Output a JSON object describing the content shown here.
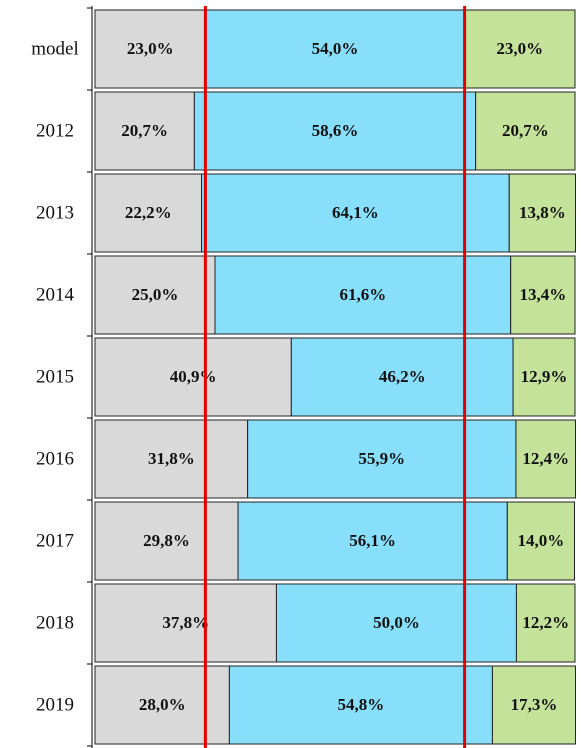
{
  "chart_data": {
    "type": "stacked-bar-horizontal",
    "categories": [
      "model",
      "2012",
      "2013",
      "2014",
      "2015",
      "2016",
      "2017",
      "2018",
      "2019"
    ],
    "series": [
      {
        "color": "#d9d9d9",
        "values": [
          23.0,
          20.7,
          22.2,
          25.0,
          40.9,
          31.8,
          29.8,
          37.8,
          28.0
        ],
        "value_labels": [
          "23,0%",
          "20,7%",
          "22,2%",
          "25,0%",
          "40,9%",
          "31,8%",
          "29,8%",
          "37,8%",
          "28,0%"
        ]
      },
      {
        "color": "#87dffc",
        "values": [
          54.0,
          58.6,
          64.1,
          61.6,
          46.2,
          55.9,
          56.1,
          50.0,
          54.8
        ],
        "value_labels": [
          "54,0%",
          "58,6%",
          "64,1%",
          "61,6%",
          "46,2%",
          "55,9%",
          "56,1%",
          "50,0%",
          "54,8%"
        ]
      },
      {
        "color": "#c4e29a",
        "values": [
          23.0,
          20.7,
          13.8,
          13.4,
          12.9,
          12.4,
          14.0,
          12.2,
          17.3
        ],
        "value_labels": [
          "23,0%",
          "20,7%",
          "13,8%",
          "13,4%",
          "12,9%",
          "12,4%",
          "14,0%",
          "12,2%",
          "17,3%"
        ]
      }
    ],
    "xlim": [
      0,
      100
    ],
    "reference_line_color": "#e00000"
  }
}
